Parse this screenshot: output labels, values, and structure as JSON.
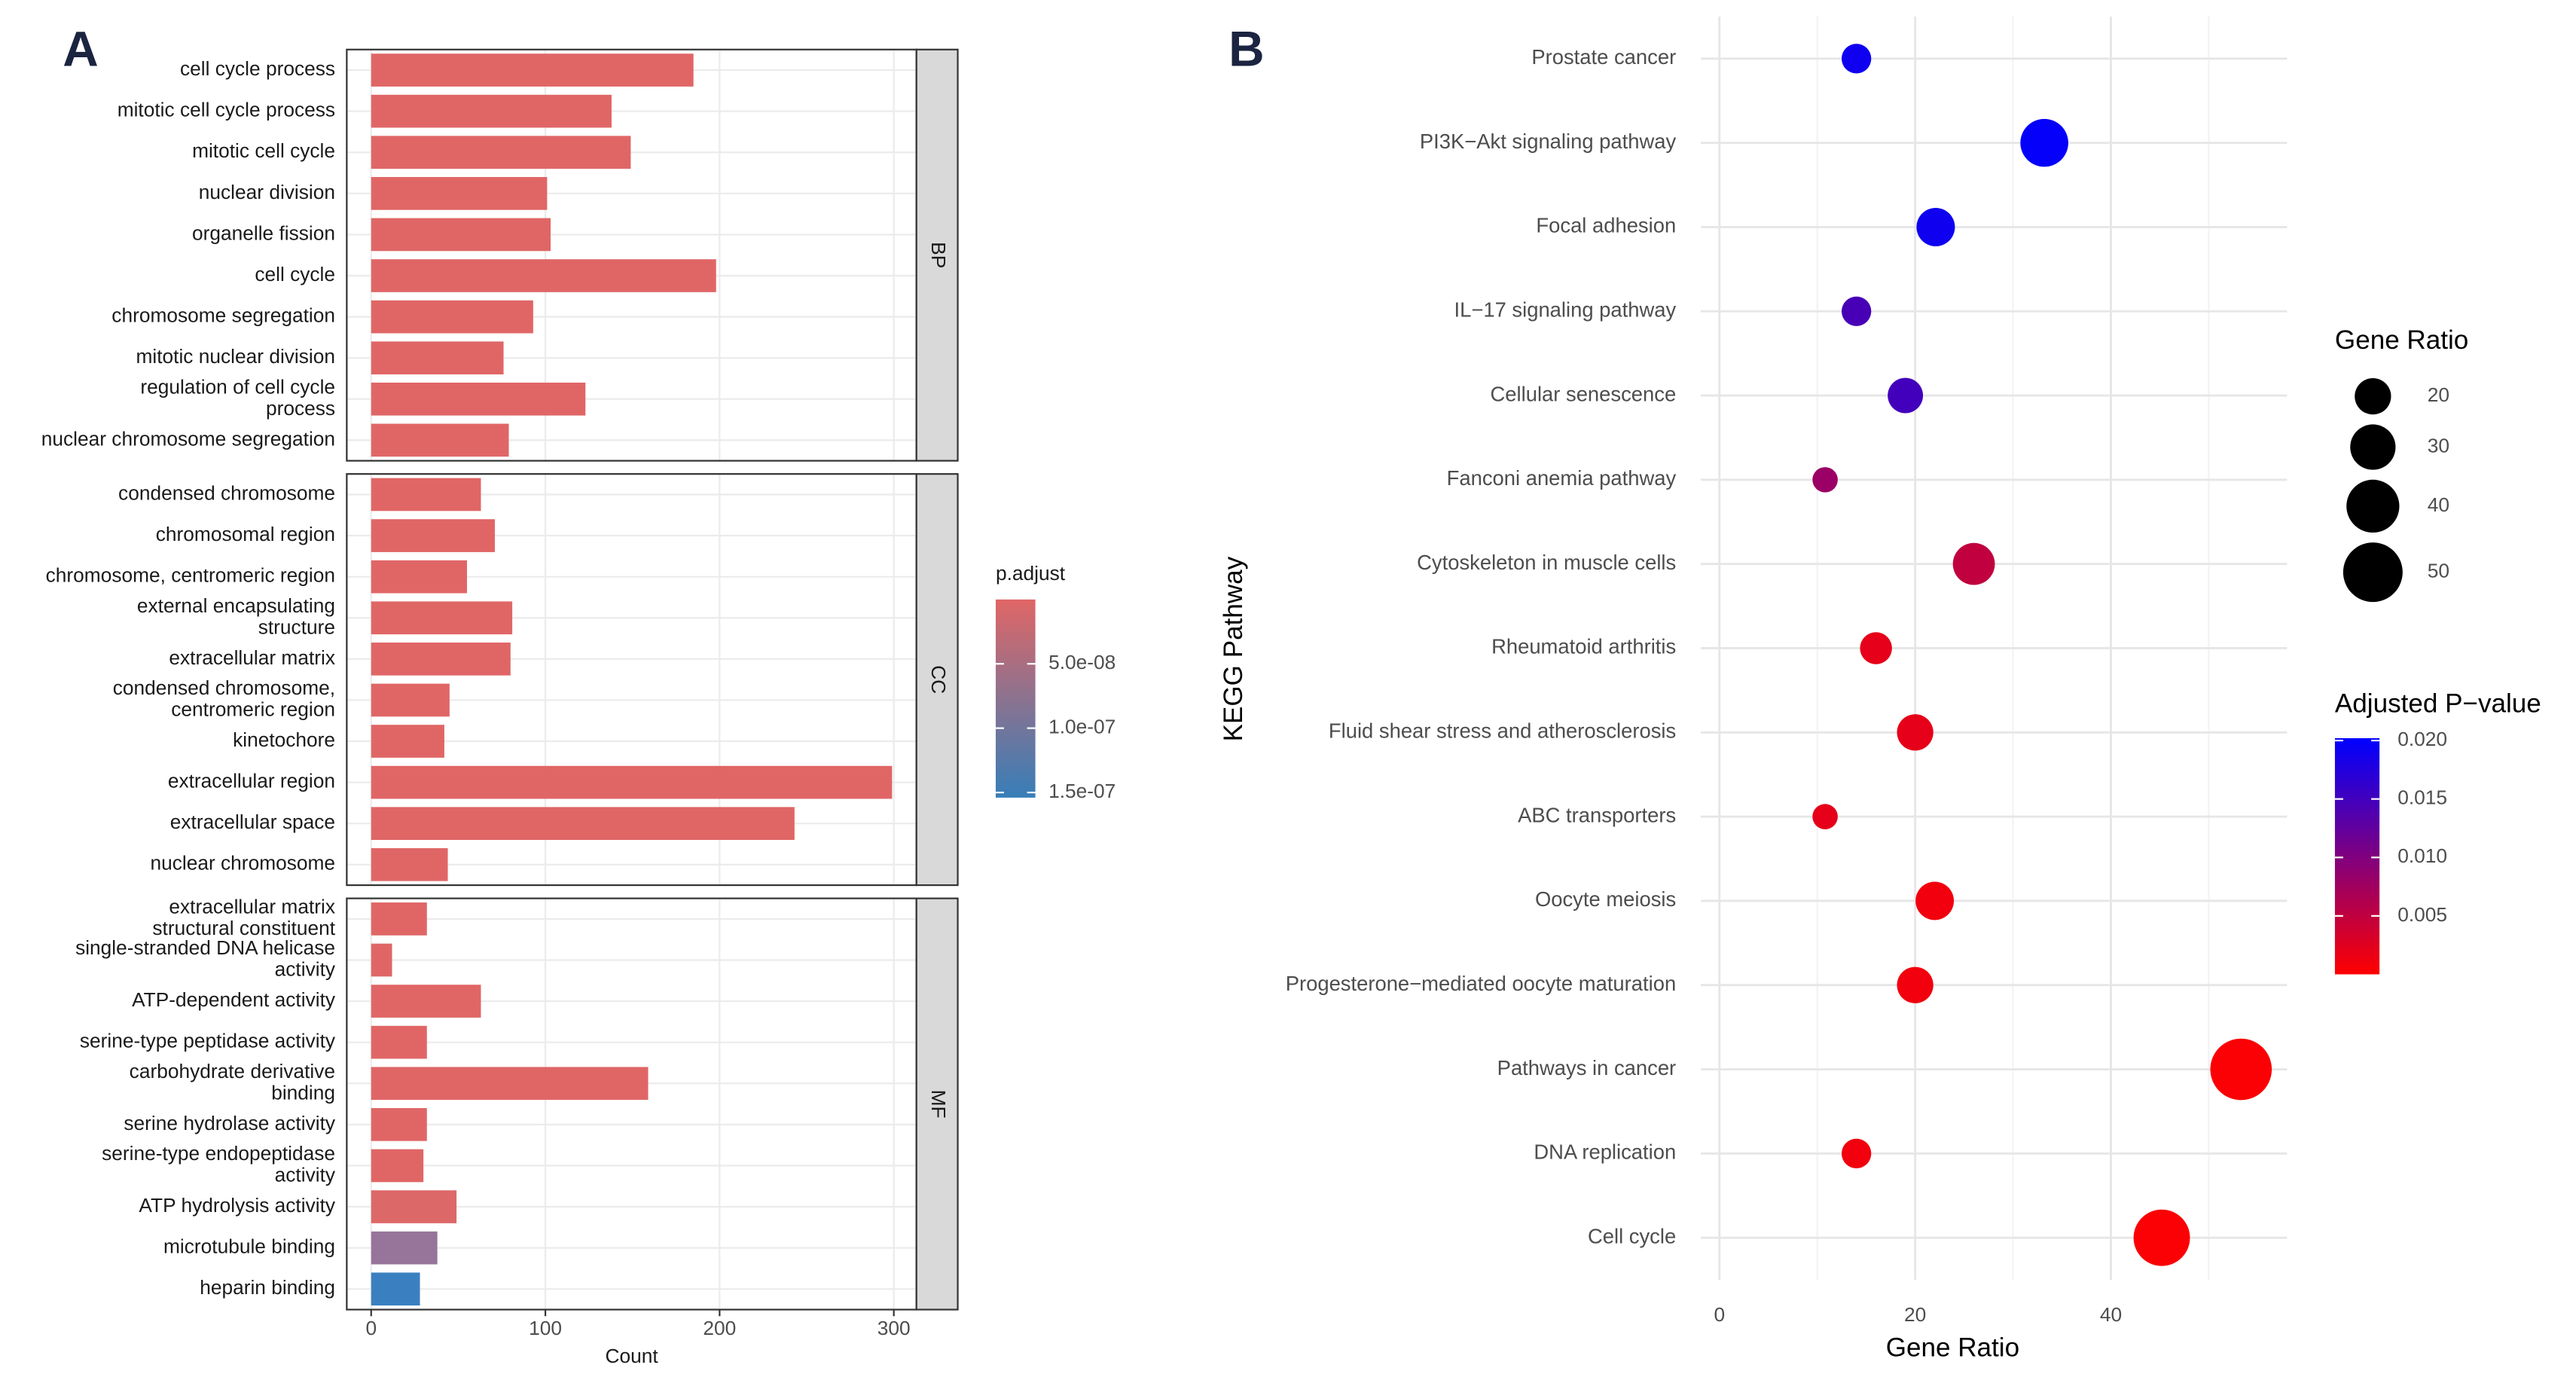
{
  "chart_data": [
    {
      "type": "bar",
      "orientation": "horizontal",
      "panel_label": "A",
      "facets": [
        {
          "name": "BP",
          "categories": [
            "cell cycle process",
            "mitotic cell cycle process",
            "mitotic cell cycle",
            "nuclear division",
            "organelle fission",
            "cell cycle",
            "chromosome segregation",
            "mitotic nuclear division",
            "regulation of cell cycle\nprocess",
            "nuclear chromosome segregation"
          ],
          "values": [
            185,
            138,
            149,
            101,
            103,
            198,
            93,
            76,
            123,
            79
          ],
          "colors": [
            "#E06666",
            "#E06666",
            "#E06666",
            "#E06666",
            "#E06666",
            "#E06666",
            "#E06666",
            "#E06666",
            "#E06666",
            "#E06666"
          ]
        },
        {
          "name": "CC",
          "categories": [
            "condensed chromosome",
            "chromosomal region",
            "chromosome, centromeric region",
            "external encapsulating\nstructure",
            "extracellular matrix",
            "condensed chromosome,\ncentromeric region",
            "kinetochore",
            "extracellular region",
            "extracellular space",
            "nuclear chromosome"
          ],
          "values": [
            63,
            71,
            55,
            81,
            80,
            45,
            42,
            299,
            243,
            44
          ],
          "colors": [
            "#E06666",
            "#E06666",
            "#E06666",
            "#E06666",
            "#E06666",
            "#E06666",
            "#E06666",
            "#E06666",
            "#E06666",
            "#E06666"
          ]
        },
        {
          "name": "MF",
          "categories": [
            "extracellular matrix\nstructural constituent",
            "single-stranded DNA helicase\nactivity",
            "ATP-dependent activity",
            "serine-type peptidase activity",
            "carbohydrate derivative\nbinding",
            "serine hydrolase activity",
            "serine-type endopeptidase\nactivity",
            "ATP hydrolysis activity",
            "microtubule binding",
            "heparin binding"
          ],
          "values": [
            32,
            12,
            63,
            32,
            159,
            32,
            30,
            49,
            38,
            28
          ],
          "colors": [
            "#E06666",
            "#E06666",
            "#E06666",
            "#E06666",
            "#E06666",
            "#E06666",
            "#E06666",
            "#DD6868",
            "#977499",
            "#3A80C0"
          ]
        }
      ],
      "xlabel": "Count",
      "xlim": [
        -14,
        313
      ],
      "xticks": [
        0,
        100,
        200,
        300
      ],
      "grid": true,
      "colorbar": {
        "title": "p.adjust",
        "lim": [
          0,
          1.54e-07
        ],
        "colors": [
          "#E06666",
          "#377EB8"
        ],
        "ticks": [
          {
            "value": 5e-08,
            "label": "5.0e-08"
          },
          {
            "value": 1e-07,
            "label": "1.0e-07"
          },
          {
            "value": 1.5e-07,
            "label": "1.5e-07"
          }
        ]
      }
    },
    {
      "type": "dot",
      "panel_label": "B",
      "categories": [
        "Prostate cancer",
        "PI3K−Akt signaling pathway",
        "Focal adhesion",
        "IL−17 signaling pathway",
        "Cellular senescence",
        "Fanconi anemia pathway",
        "Cytoskeleton in muscle cells",
        "Rheumatoid arthritis",
        "Fluid shear stress and atherosclerosis",
        "ABC transporters",
        "Oocyte meiosis",
        "Progesterone−mediated oocyte maturation",
        "Pathways in cancer",
        "DNA replication",
        "Cell cycle"
      ],
      "values": [
        14,
        33.2,
        22.1,
        14,
        19,
        10.8,
        26,
        16,
        20,
        10.8,
        22,
        20,
        53.3,
        14,
        45.2
      ],
      "pvalues": [
        0.019,
        0.0198,
        0.019,
        0.0145,
        0.015,
        0.008,
        0.005,
        0.002,
        0.002,
        0.002,
        0.001,
        0.001,
        0.0003,
        0.001,
        0.0003
      ],
      "xlabel": "Gene Ratio",
      "ylabel": "KEGG Pathway",
      "xlim": [
        -1.9,
        58
      ],
      "xticks": [
        0,
        20,
        40
      ],
      "xminor": [
        10,
        30,
        50
      ],
      "grid": true,
      "size_legend": {
        "title": "Gene Ratio",
        "values": [
          20,
          30,
          40,
          50
        ]
      },
      "colorbar": {
        "title": "Adjusted P−value",
        "lim": [
          0,
          0.0202
        ],
        "colors": [
          "#FF0000",
          "#0000FF"
        ],
        "ticks": [
          0.005,
          {
            "value": 0.01,
            "label": "0.010"
          },
          0.015,
          {
            "value": 0.02,
            "label": "0.020"
          }
        ]
      }
    }
  ]
}
